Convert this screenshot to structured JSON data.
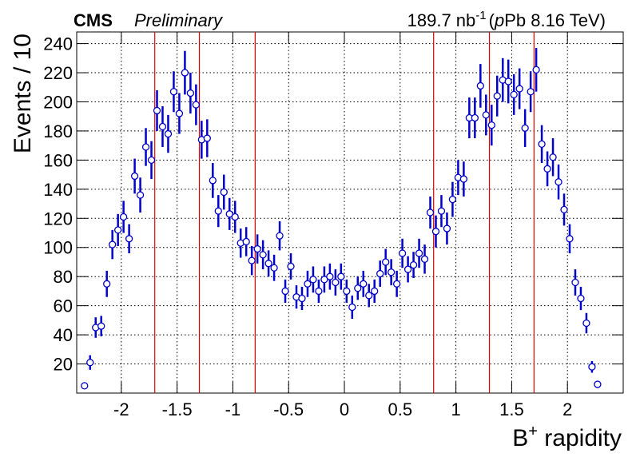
{
  "chart_data": {
    "type": "errorbar",
    "experiment": "CMS",
    "status": "Preliminary",
    "luminosity": "189.7 nb",
    "luminosity_exponent": "-1",
    "energy_open": "(",
    "energy_italic": "p",
    "energy": "Pb 8.16 TeV)",
    "xlabel": "B",
    "xlabel_superscript": "+",
    "xlabel_rest": " rapidity",
    "ylabel": "Events / 10",
    "color": "#0000cc",
    "x": [
      -2.33,
      -2.28,
      -2.23,
      -2.18,
      -2.13,
      -2.08,
      -2.03,
      -1.98,
      -1.93,
      -1.88,
      -1.83,
      -1.78,
      -1.73,
      -1.68,
      -1.63,
      -1.58,
      -1.53,
      -1.48,
      -1.43,
      -1.38,
      -1.33,
      -1.28,
      -1.23,
      -1.18,
      -1.13,
      -1.08,
      -1.03,
      -0.98,
      -0.93,
      -0.88,
      -0.83,
      -0.78,
      -0.73,
      -0.68,
      -0.63,
      -0.58,
      -0.53,
      -0.48,
      -0.43,
      -0.38,
      -0.33,
      -0.28,
      -0.23,
      -0.18,
      -0.13,
      -0.08,
      -0.03,
      0.02,
      0.07,
      0.12,
      0.17,
      0.22,
      0.27,
      0.32,
      0.37,
      0.42,
      0.47,
      0.52,
      0.57,
      0.62,
      0.67,
      0.72,
      0.77,
      0.82,
      0.87,
      0.92,
      0.97,
      1.02,
      1.07,
      1.12,
      1.17,
      1.22,
      1.27,
      1.32,
      1.37,
      1.42,
      1.47,
      1.52,
      1.57,
      1.62,
      1.67,
      1.72,
      1.77,
      1.82,
      1.87,
      1.92,
      1.97,
      2.02,
      2.07,
      2.12,
      2.17,
      2.22,
      2.27
    ],
    "values": [
      5,
      21,
      45,
      46,
      75,
      102,
      112,
      121,
      106,
      149,
      136,
      169,
      160,
      194,
      183,
      178,
      207,
      192,
      220,
      206,
      198,
      174,
      175,
      146,
      125,
      138,
      123,
      121,
      103,
      104,
      91,
      99,
      95,
      89,
      86,
      108,
      70,
      87,
      66,
      65,
      75,
      78,
      70,
      78,
      80,
      76,
      80,
      70,
      59,
      72,
      75,
      67,
      70,
      82,
      90,
      83,
      75,
      96,
      85,
      88,
      96,
      92,
      124,
      111,
      125,
      113,
      133,
      148,
      147,
      189,
      189,
      211,
      191,
      184,
      204,
      215,
      214,
      205,
      209,
      182,
      207,
      222,
      171,
      154,
      162,
      145,
      126,
      106,
      76,
      65,
      48,
      18,
      6
    ],
    "errors": [
      2,
      5,
      7,
      7,
      9,
      10,
      11,
      11,
      10,
      12,
      12,
      13,
      13,
      14,
      14,
      13,
      14,
      14,
      15,
      14,
      14,
      13,
      13,
      12,
      11,
      12,
      11,
      11,
      10,
      10,
      10,
      10,
      10,
      9,
      9,
      10,
      8,
      9,
      8,
      8,
      9,
      9,
      8,
      9,
      9,
      9,
      9,
      8,
      8,
      8,
      9,
      8,
      8,
      9,
      9,
      9,
      9,
      10,
      9,
      9,
      10,
      10,
      11,
      11,
      11,
      11,
      12,
      12,
      12,
      14,
      14,
      15,
      14,
      14,
      14,
      15,
      15,
      14,
      14,
      13,
      14,
      15,
      13,
      12,
      13,
      12,
      11,
      10,
      9,
      8,
      7,
      4,
      2
    ],
    "vlines": [
      -1.7,
      -1.3,
      -0.8,
      0.8,
      1.3,
      1.7
    ],
    "vline_color": "#e00000",
    "xlim": [
      -2.4,
      2.5
    ],
    "ylim": [
      0,
      248
    ],
    "xticks": [
      -2,
      -1.5,
      -1,
      -0.5,
      0,
      0.5,
      1,
      1.5,
      2
    ],
    "yticks": [
      20,
      40,
      60,
      80,
      100,
      120,
      140,
      160,
      180,
      200,
      220,
      240
    ],
    "grid": true
  }
}
